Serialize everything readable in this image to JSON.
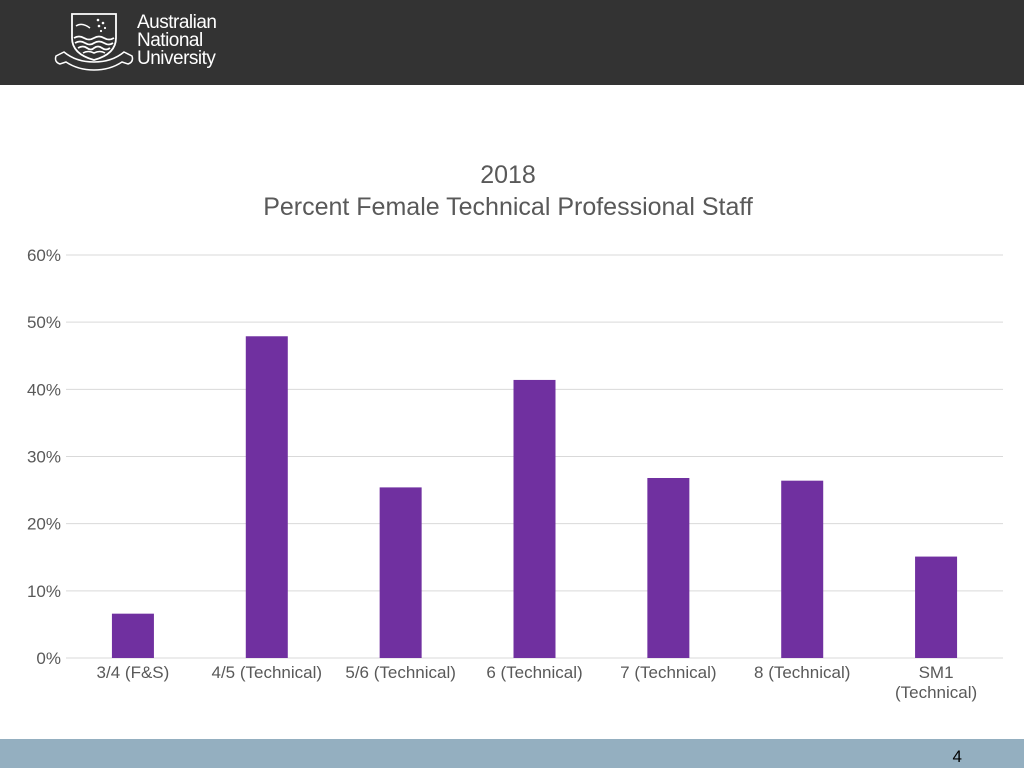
{
  "header": {
    "brand_lines": [
      "Australian",
      "National",
      "University"
    ]
  },
  "colors": {
    "header_bg": "#333333",
    "bar": "#7030a0",
    "gridline": "#d9d9d9",
    "text": "#595959",
    "footer_bg": "#94afc0"
  },
  "footer": {
    "page_number": "4"
  },
  "chart_data": {
    "type": "bar",
    "title_lines": [
      "2018",
      "Percent Female Technical Professional Staff"
    ],
    "categories": [
      [
        "3/4 (F&S)"
      ],
      [
        "4/5 (Technical)"
      ],
      [
        "5/6 (Technical)"
      ],
      [
        "6 (Technical)"
      ],
      [
        "7 (Technical)"
      ],
      [
        "8 (Technical)"
      ],
      [
        "SM1",
        "(Technical)"
      ]
    ],
    "values": [
      6.6,
      47.9,
      25.4,
      41.4,
      26.8,
      26.4,
      15.1
    ],
    "ylim": [
      0,
      60
    ],
    "yticks": [
      0,
      10,
      20,
      30,
      40,
      50,
      60
    ],
    "ytick_labels": [
      "0%",
      "10%",
      "20%",
      "30%",
      "40%",
      "50%",
      "60%"
    ],
    "xlabel": "",
    "ylabel": "",
    "grid": true,
    "legend": "none"
  }
}
